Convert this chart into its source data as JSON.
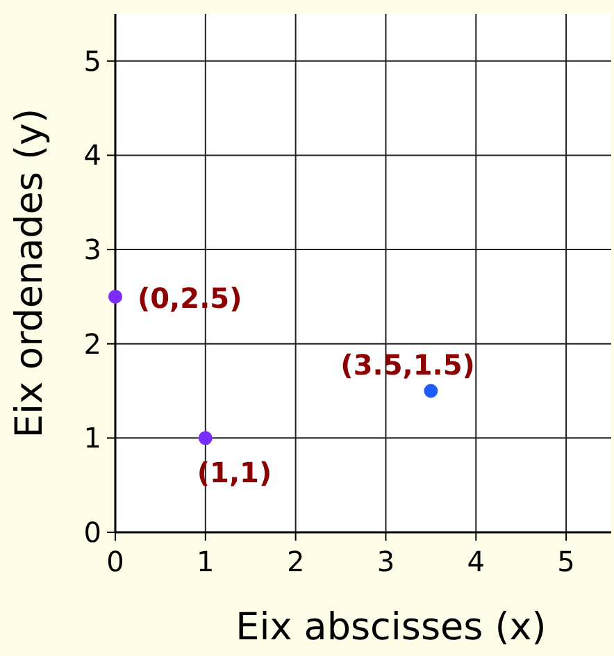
{
  "chart_data": {
    "type": "scatter",
    "xlabel": "Eix abscisses (x)",
    "ylabel": "Eix ordenades (y)",
    "x": [
      0,
      1,
      3.5
    ],
    "values": [
      2.5,
      1,
      1.5
    ],
    "colors": [
      "#7b2cff",
      "#7b2cff",
      "#1f5cff"
    ],
    "xlim": [
      0,
      5.5
    ],
    "ylim": [
      0,
      5.5
    ],
    "xticks": [
      0,
      1,
      2,
      3,
      4,
      5
    ],
    "yticks": [
      0,
      1,
      2,
      3,
      4,
      5
    ],
    "grid": true,
    "marker": "circle",
    "annotations": [
      {
        "text": "(0,2.5)",
        "x": 0,
        "y": 2.5
      },
      {
        "text": "(1,1)",
        "x": 1,
        "y": 1
      },
      {
        "text": "(3.5,1.5)",
        "x": 3.5,
        "y": 1.5
      }
    ]
  }
}
